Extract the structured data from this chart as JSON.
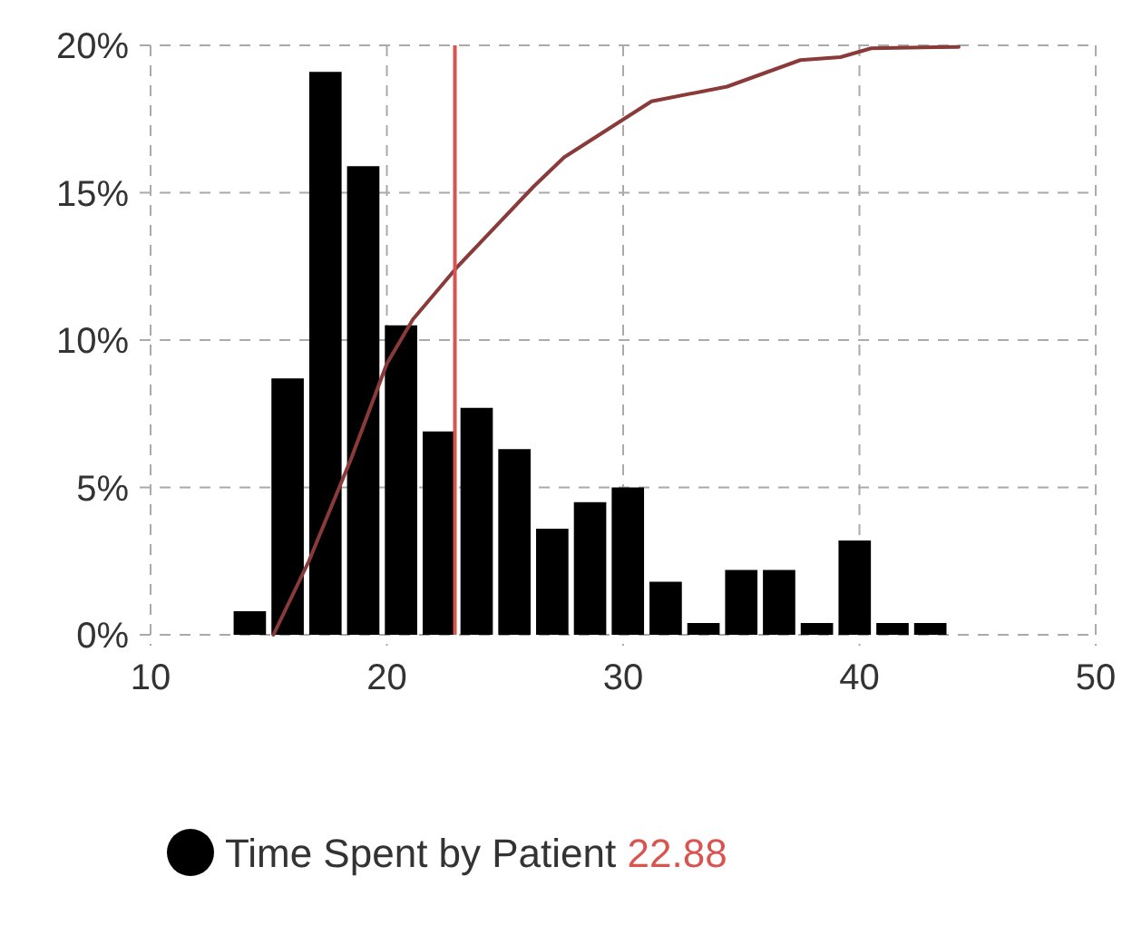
{
  "chart_data": {
    "type": "histogram",
    "bins": [
      13.4,
      15.0,
      16.6,
      18.2,
      19.8,
      21.4,
      23.0,
      24.6,
      26.2,
      27.8,
      29.4,
      31.0,
      32.6,
      34.2,
      35.8,
      37.4,
      39.0,
      40.6,
      42.2,
      43.8
    ],
    "series": [
      {
        "name": "Time Spent by Patient",
        "color": "#000000",
        "values": [
          0.8,
          8.7,
          19.1,
          15.9,
          10.5,
          6.9,
          7.7,
          6.3,
          3.6,
          4.5,
          5.0,
          1.8,
          0.4,
          2.2,
          2.2,
          0.4,
          3.2,
          0.4,
          0.4
        ]
      },
      {
        "type": "line",
        "color": "#8b3a3a",
        "x": [
          15.2,
          16.7,
          18.5,
          20,
          21.1,
          23,
          26.2,
          27.5,
          31.2,
          34.4,
          37.5,
          39.2,
          40.5,
          44.2
        ],
        "values": [
          0,
          2.5,
          6.0,
          9.2,
          10.7,
          12.5,
          15.2,
          16.2,
          18.1,
          18.6,
          19.5,
          19.6,
          19.9,
          19.95
        ]
      }
    ],
    "xlim": [
      10,
      50
    ],
    "ylim": [
      0,
      20
    ],
    "xticks": [
      10,
      20,
      30,
      40,
      50
    ],
    "yticks": [
      {
        "value": 0,
        "label": "0%"
      },
      {
        "value": 5,
        "label": "5%"
      },
      {
        "value": 10,
        "label": "10%"
      },
      {
        "value": 15,
        "label": "15%"
      },
      {
        "value": 20,
        "label": "20%"
      }
    ],
    "ref_lines": [
      {
        "axis": "x",
        "value": 22.88,
        "label": "22.88",
        "color": "#d9534f"
      }
    ],
    "grid": true,
    "legend": "bottom"
  }
}
